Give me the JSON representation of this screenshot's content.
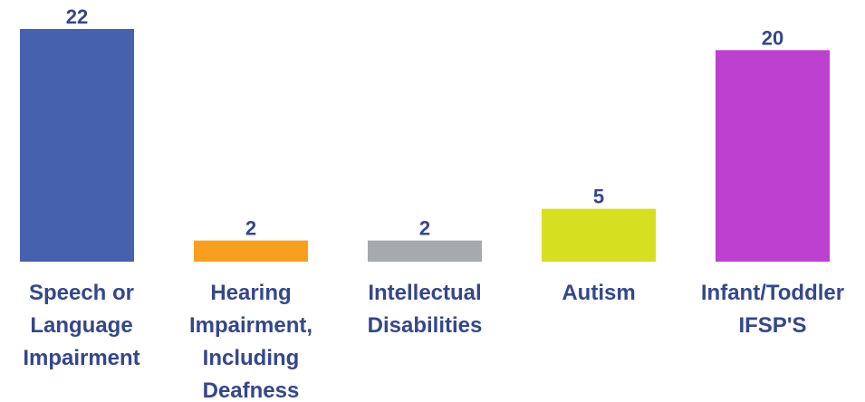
{
  "chart_data": {
    "type": "bar",
    "categories": [
      "Speech or Language Impairment",
      "Hearing Impairment, Including Deafness",
      "Intellectual Disabilities",
      "Autism",
      "Infant/Toddler IFSP'S"
    ],
    "values": [
      22,
      2,
      2,
      5,
      20
    ],
    "colors": [
      "#4661ae",
      "#f99f1f",
      "#a6a9ae",
      "#d6df20",
      "#bd40d0"
    ]
  }
}
